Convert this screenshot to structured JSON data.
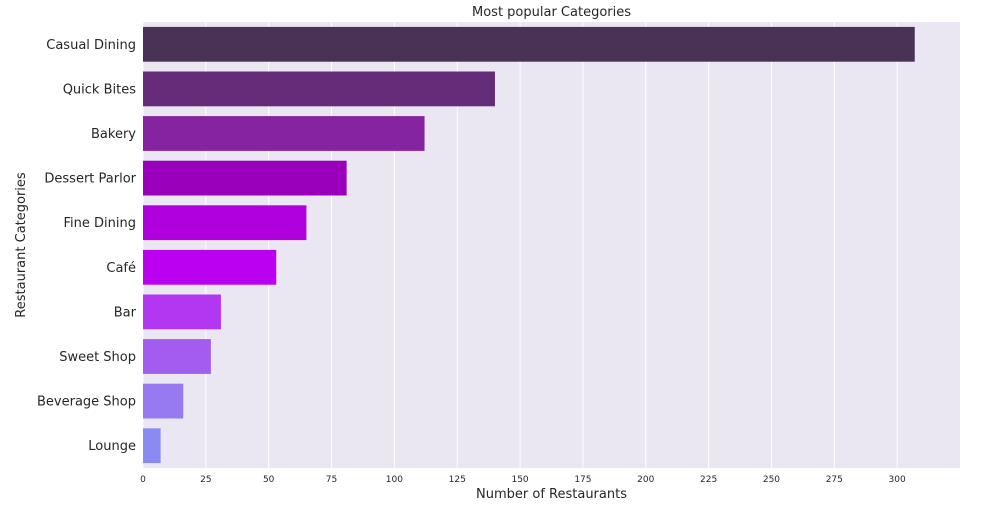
{
  "chart_data": {
    "type": "bar",
    "orientation": "horizontal",
    "title": "Most popular Categories",
    "xlabel": "Number of Restaurants",
    "ylabel": "Restaurant Categories",
    "xlim": [
      0,
      325
    ],
    "xticks": [
      0,
      25,
      50,
      75,
      100,
      125,
      150,
      175,
      200,
      225,
      250,
      275,
      300
    ],
    "grid": true,
    "categories": [
      "Casual Dining",
      "Quick Bites",
      "Bakery",
      "Dessert Parlor",
      "Fine Dining",
      "Café",
      "Bar",
      "Sweet Shop",
      "Beverage Shop",
      "Lounge"
    ],
    "values": [
      307,
      140,
      112,
      81,
      65,
      53,
      31,
      27,
      16,
      7
    ],
    "colors": [
      "#4a3156",
      "#652c7a",
      "#8424a0",
      "#9a00bb",
      "#b100de",
      "#bb00f2",
      "#b336f0",
      "#a35cf0",
      "#977af2",
      "#8b8af2"
    ],
    "background_color": "#eae6f2"
  }
}
